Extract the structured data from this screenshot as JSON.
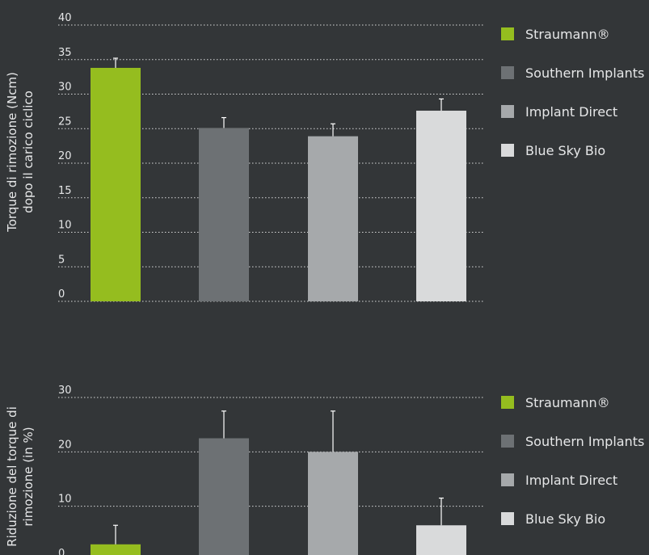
{
  "colors": {
    "background": "#333638",
    "series": [
      "#95bd1f",
      "#6d7174",
      "#a6a9ab",
      "#d9dadb"
    ],
    "grid": "#d8d9da",
    "text": "#e6e7e8"
  },
  "chart_data": [
    {
      "type": "bar",
      "ylabel_lines": [
        "Torque di rimozione (Ncm)",
        "dopo il carico ciclico"
      ],
      "categories": [
        "Straumann®",
        "Southern Implants",
        "Implant Direct",
        "Blue Sky Bio"
      ],
      "values": [
        33.8,
        25.1,
        23.9,
        27.6
      ],
      "errors": [
        1.4,
        1.5,
        1.8,
        1.7
      ],
      "ylim": [
        0,
        40
      ],
      "yticks": [
        0,
        5,
        10,
        15,
        20,
        25,
        30,
        35,
        40
      ],
      "grid": true,
      "legend_position": "right",
      "legend": [
        "Straumann®",
        "Southern Implants",
        "Implant Direct",
        "Blue Sky Bio"
      ]
    },
    {
      "type": "bar",
      "ylabel_lines": [
        "Riduzione del torque di",
        "rimozione (in %)"
      ],
      "categories": [
        "Straumann®",
        "Southern Implants",
        "Implant Direct",
        "Blue Sky Bio"
      ],
      "values": [
        3,
        22.5,
        20,
        6.5
      ],
      "errors": [
        3.5,
        5,
        7.5,
        5
      ],
      "ylim": [
        0,
        30
      ],
      "yticks": [
        0,
        10,
        20,
        30
      ],
      "grid": true,
      "legend_position": "right",
      "legend": [
        "Straumann®",
        "Southern Implants",
        "Implant Direct",
        "Blue Sky Bio"
      ]
    }
  ]
}
